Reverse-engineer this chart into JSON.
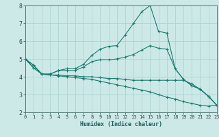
{
  "xlabel": "Humidex (Indice chaleur)",
  "bg_color": "#cce9e8",
  "grid_color": "#aad4d3",
  "line_color": "#1a7a6e",
  "xmin": 0,
  "xmax": 23,
  "ymin": 2,
  "ymax": 8,
  "yticks": [
    2,
    3,
    4,
    5,
    6,
    7,
    8
  ],
  "lines": [
    {
      "x": [
        0,
        1,
        2,
        3,
        4,
        5,
        6,
        7,
        8,
        9,
        10,
        11,
        12,
        13,
        14,
        15,
        16,
        17,
        18,
        19,
        20,
        21,
        22,
        23
      ],
      "y": [
        5.0,
        4.65,
        4.15,
        4.15,
        4.35,
        4.45,
        4.45,
        4.7,
        5.2,
        5.55,
        5.7,
        5.75,
        6.35,
        7.0,
        7.65,
        8.0,
        6.55,
        6.45,
        4.45,
        3.85,
        3.5,
        3.3,
        2.9,
        2.4
      ]
    },
    {
      "x": [
        0,
        1,
        2,
        3,
        4,
        5,
        6,
        7,
        8,
        9,
        10,
        11,
        12,
        13,
        14,
        15,
        16,
        17,
        18,
        19,
        20,
        21,
        22,
        23
      ],
      "y": [
        5.0,
        4.65,
        4.15,
        4.15,
        4.35,
        4.35,
        4.35,
        4.55,
        4.85,
        4.95,
        4.95,
        5.0,
        5.1,
        5.25,
        5.5,
        5.75,
        5.6,
        5.55,
        4.45,
        3.85,
        3.5,
        3.3,
        2.9,
        2.4
      ]
    },
    {
      "x": [
        0,
        1,
        2,
        3,
        4,
        5,
        6,
        7,
        8,
        9,
        10,
        11,
        12,
        13,
        14,
        15,
        16,
        17,
        18,
        19,
        20,
        21,
        22,
        23
      ],
      "y": [
        5.0,
        4.5,
        4.15,
        4.1,
        4.1,
        4.05,
        4.05,
        4.0,
        4.0,
        3.95,
        3.9,
        3.9,
        3.85,
        3.8,
        3.8,
        3.8,
        3.8,
        3.8,
        3.8,
        3.8,
        3.6,
        3.3,
        2.9,
        2.4
      ]
    },
    {
      "x": [
        0,
        1,
        2,
        3,
        4,
        5,
        6,
        7,
        8,
        9,
        10,
        11,
        12,
        13,
        14,
        15,
        16,
        17,
        18,
        19,
        20,
        21,
        22,
        23
      ],
      "y": [
        5.0,
        4.5,
        4.15,
        4.1,
        4.05,
        4.0,
        3.95,
        3.9,
        3.85,
        3.75,
        3.65,
        3.55,
        3.45,
        3.35,
        3.25,
        3.15,
        3.0,
        2.85,
        2.75,
        2.6,
        2.5,
        2.4,
        2.35,
        2.4
      ]
    }
  ]
}
